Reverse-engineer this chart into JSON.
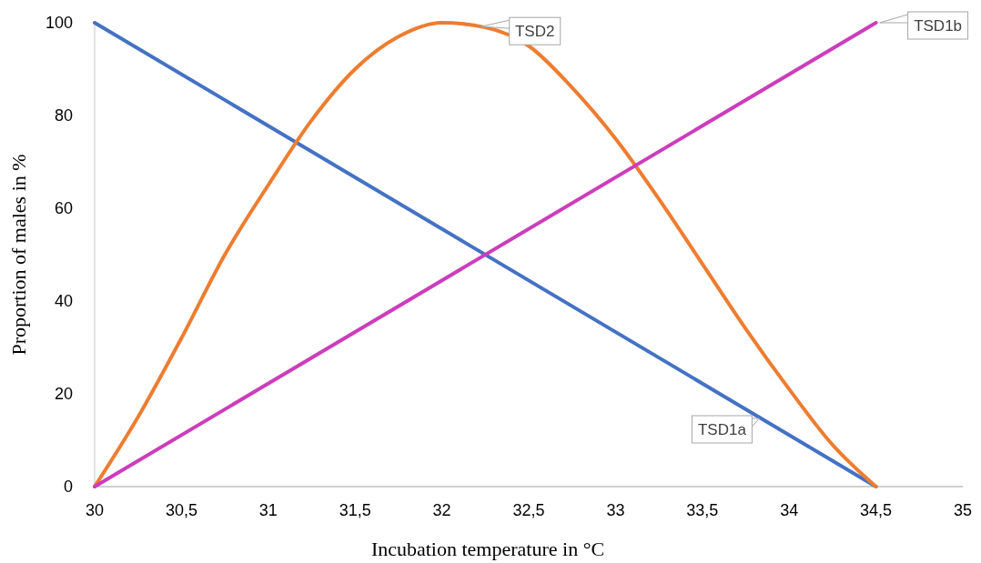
{
  "chart_data": {
    "type": "line",
    "xlabel": "Incubation temperature in °C",
    "ylabel": "Proportion of males in %",
    "xlim": [
      30,
      35
    ],
    "ylim": [
      0,
      100
    ],
    "xticks": [
      30,
      {
        "value": 30.5,
        "label": "30,5"
      },
      31,
      {
        "value": 31.5,
        "label": "31,5"
      },
      32,
      {
        "value": 32.5,
        "label": "32,5"
      },
      33,
      {
        "value": 33.5,
        "label": "33,5"
      },
      34,
      {
        "value": 34.5,
        "label": "34,5"
      },
      35
    ],
    "yticks": [
      0,
      20,
      40,
      60,
      80,
      100
    ],
    "grid": false,
    "marker": "none",
    "line_style": "solid",
    "series": [
      {
        "name": "TSD1a",
        "color": "#4472c4",
        "x": [
          30,
          34.5
        ],
        "values": [
          100,
          0
        ]
      },
      {
        "name": "TSD2",
        "color": "#ed7d31",
        "x": [
          30,
          30.25,
          30.5,
          30.75,
          31,
          31.25,
          31.5,
          31.75,
          32,
          32.25,
          32.5,
          32.75,
          33,
          33.25,
          33.5,
          33.75,
          34,
          34.25,
          34.5
        ],
        "values": [
          0,
          15,
          32,
          50,
          65,
          79,
          90,
          97,
          100,
          99,
          95,
          86,
          75,
          62,
          48,
          34,
          21,
          9,
          0
        ]
      },
      {
        "name": "TSD1b",
        "color": "#cc3dbb",
        "x": [
          30,
          34.5
        ],
        "values": [
          0,
          100
        ]
      }
    ]
  }
}
